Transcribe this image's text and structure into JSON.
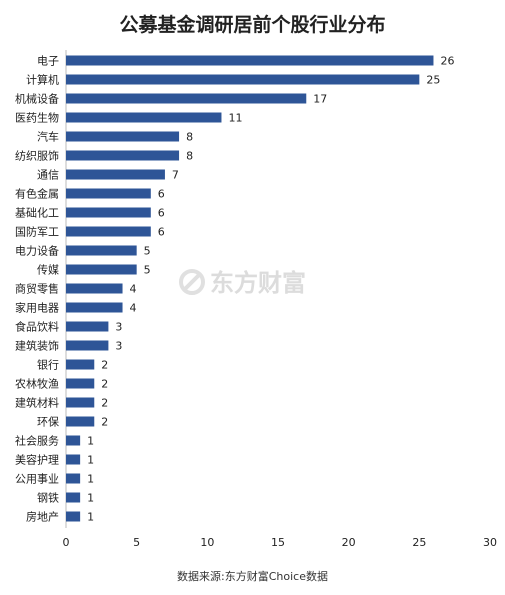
{
  "chart_data": {
    "type": "bar",
    "orientation": "horizontal",
    "title": "公募基金调研居前个股行业分布",
    "categories": [
      "电子",
      "计算机",
      "机械设备",
      "医药生物",
      "汽车",
      "纺织服饰",
      "通信",
      "有色金属",
      "基础化工",
      "国防军工",
      "电力设备",
      "传媒",
      "商贸零售",
      "家用电器",
      "食品饮料",
      "建筑装饰",
      "银行",
      "农林牧渔",
      "建筑材料",
      "环保",
      "社会服务",
      "美容护理",
      "公用事业",
      "钢铁",
      "房地产"
    ],
    "values": [
      26,
      25,
      17,
      11,
      8,
      8,
      7,
      6,
      6,
      6,
      5,
      5,
      4,
      4,
      3,
      3,
      2,
      2,
      2,
      2,
      1,
      1,
      1,
      1,
      1
    ],
    "xlim": [
      0,
      30
    ],
    "xticks": [
      0,
      5,
      10,
      15,
      20,
      25,
      30
    ],
    "xlabel": "",
    "ylabel": "",
    "grid": false,
    "bar_color": "#2e5597"
  },
  "watermark": "东方财富",
  "source": "数据来源:东方财富Choice数据"
}
